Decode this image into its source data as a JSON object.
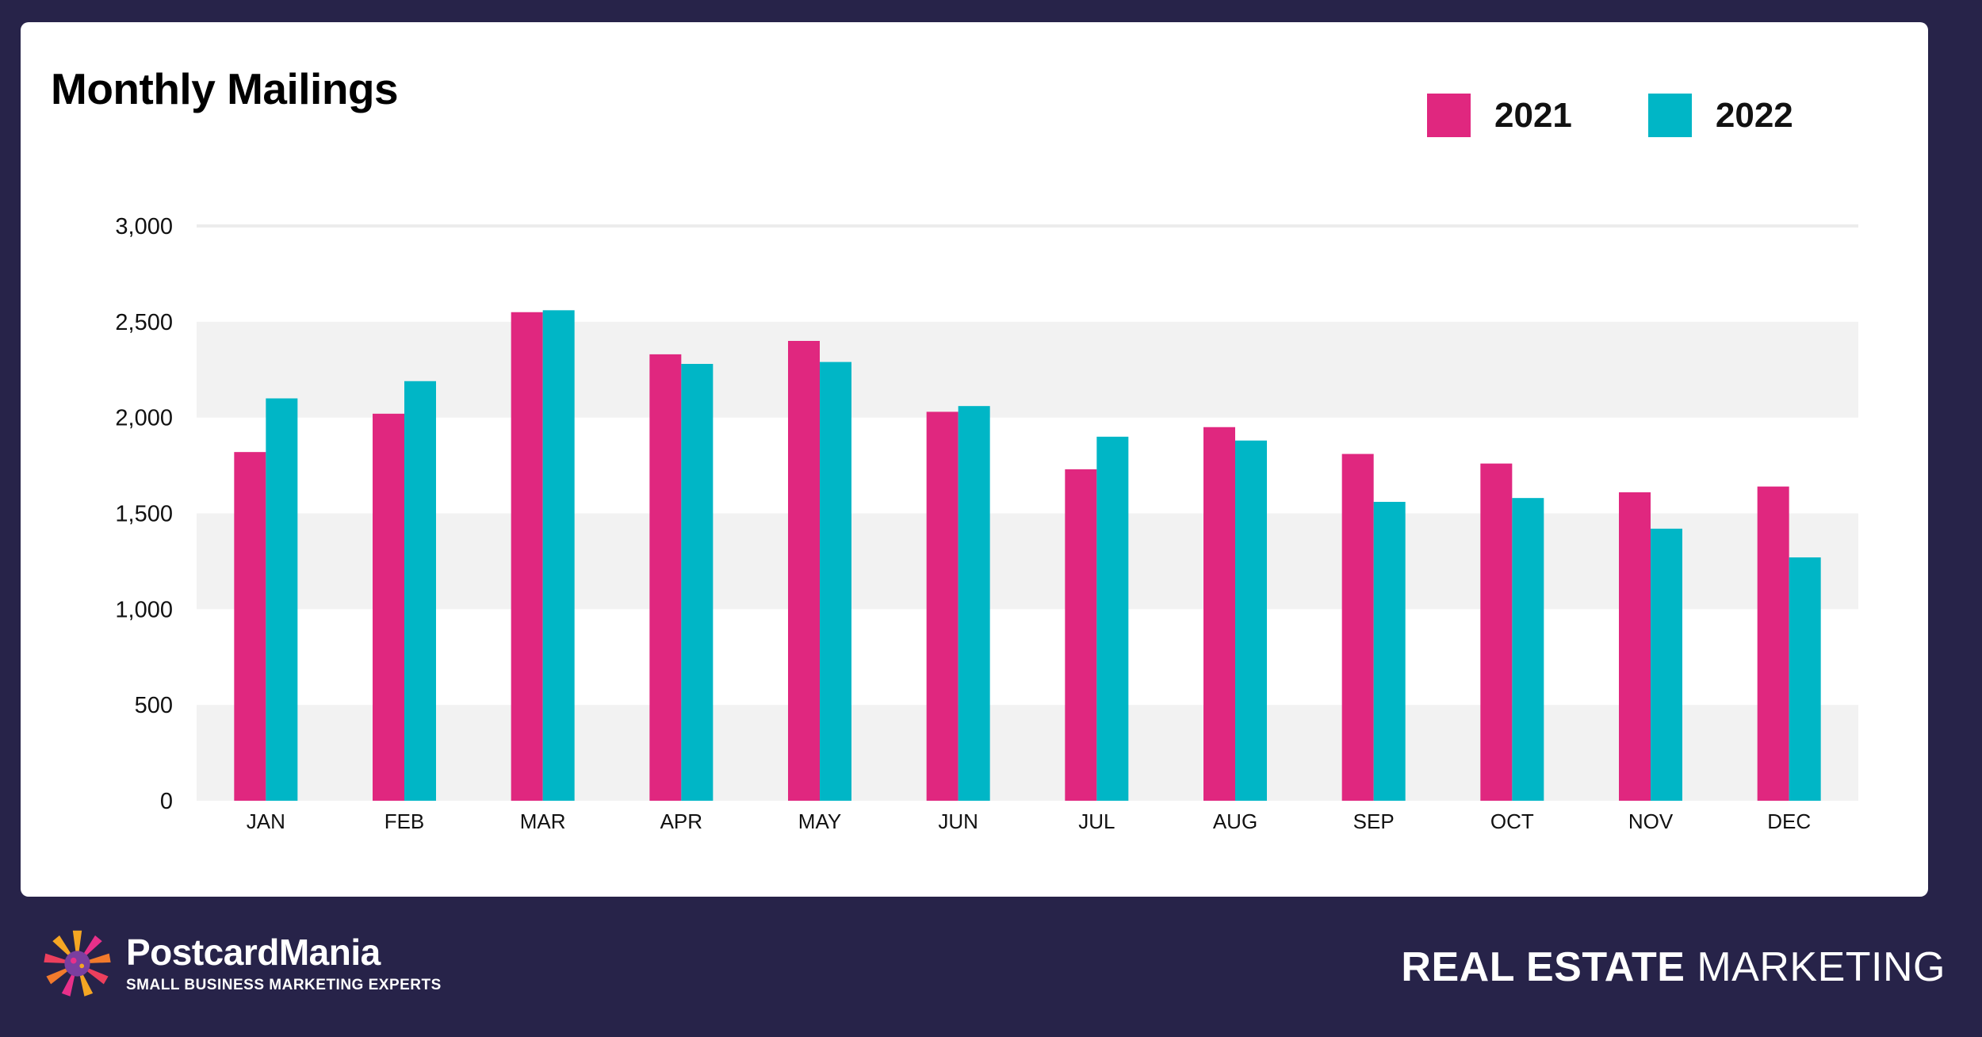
{
  "title": "Monthly Mailings",
  "colors": {
    "s2021": "#e0277f",
    "s2022": "#00b6c6",
    "background": "#272349",
    "band": "#f2f2f2"
  },
  "chart_data": {
    "type": "bar",
    "title": "Monthly Mailings",
    "xlabel": "",
    "ylabel": "",
    "ylim": [
      0,
      3000
    ],
    "yticks": [
      "0",
      "500",
      "1,000",
      "1,500",
      "2,000",
      "2,500",
      "3,000"
    ],
    "ytick_values": [
      0,
      500,
      1000,
      1500,
      2000,
      2500,
      3000
    ],
    "categories": [
      "JAN",
      "FEB",
      "MAR",
      "APR",
      "MAY",
      "JUN",
      "JUL",
      "AUG",
      "SEP",
      "OCT",
      "NOV",
      "DEC"
    ],
    "series": [
      {
        "name": "2021",
        "color": "#e0277f",
        "values": [
          1820,
          2020,
          2550,
          2330,
          2400,
          2030,
          1730,
          1950,
          1810,
          1760,
          1610,
          1640
        ]
      },
      {
        "name": "2022",
        "color": "#00b6c6",
        "values": [
          2100,
          2190,
          2560,
          2280,
          2290,
          2060,
          1900,
          1880,
          1560,
          1580,
          1420,
          1270
        ]
      }
    ],
    "legend_position": "top-right"
  },
  "footer": {
    "brand_name": "PostcardMania",
    "brand_tagline": "SMALL BUSINESS MARKETING EXPERTS",
    "category_bold": "REAL ESTATE",
    "category_light": "MARKETING"
  }
}
